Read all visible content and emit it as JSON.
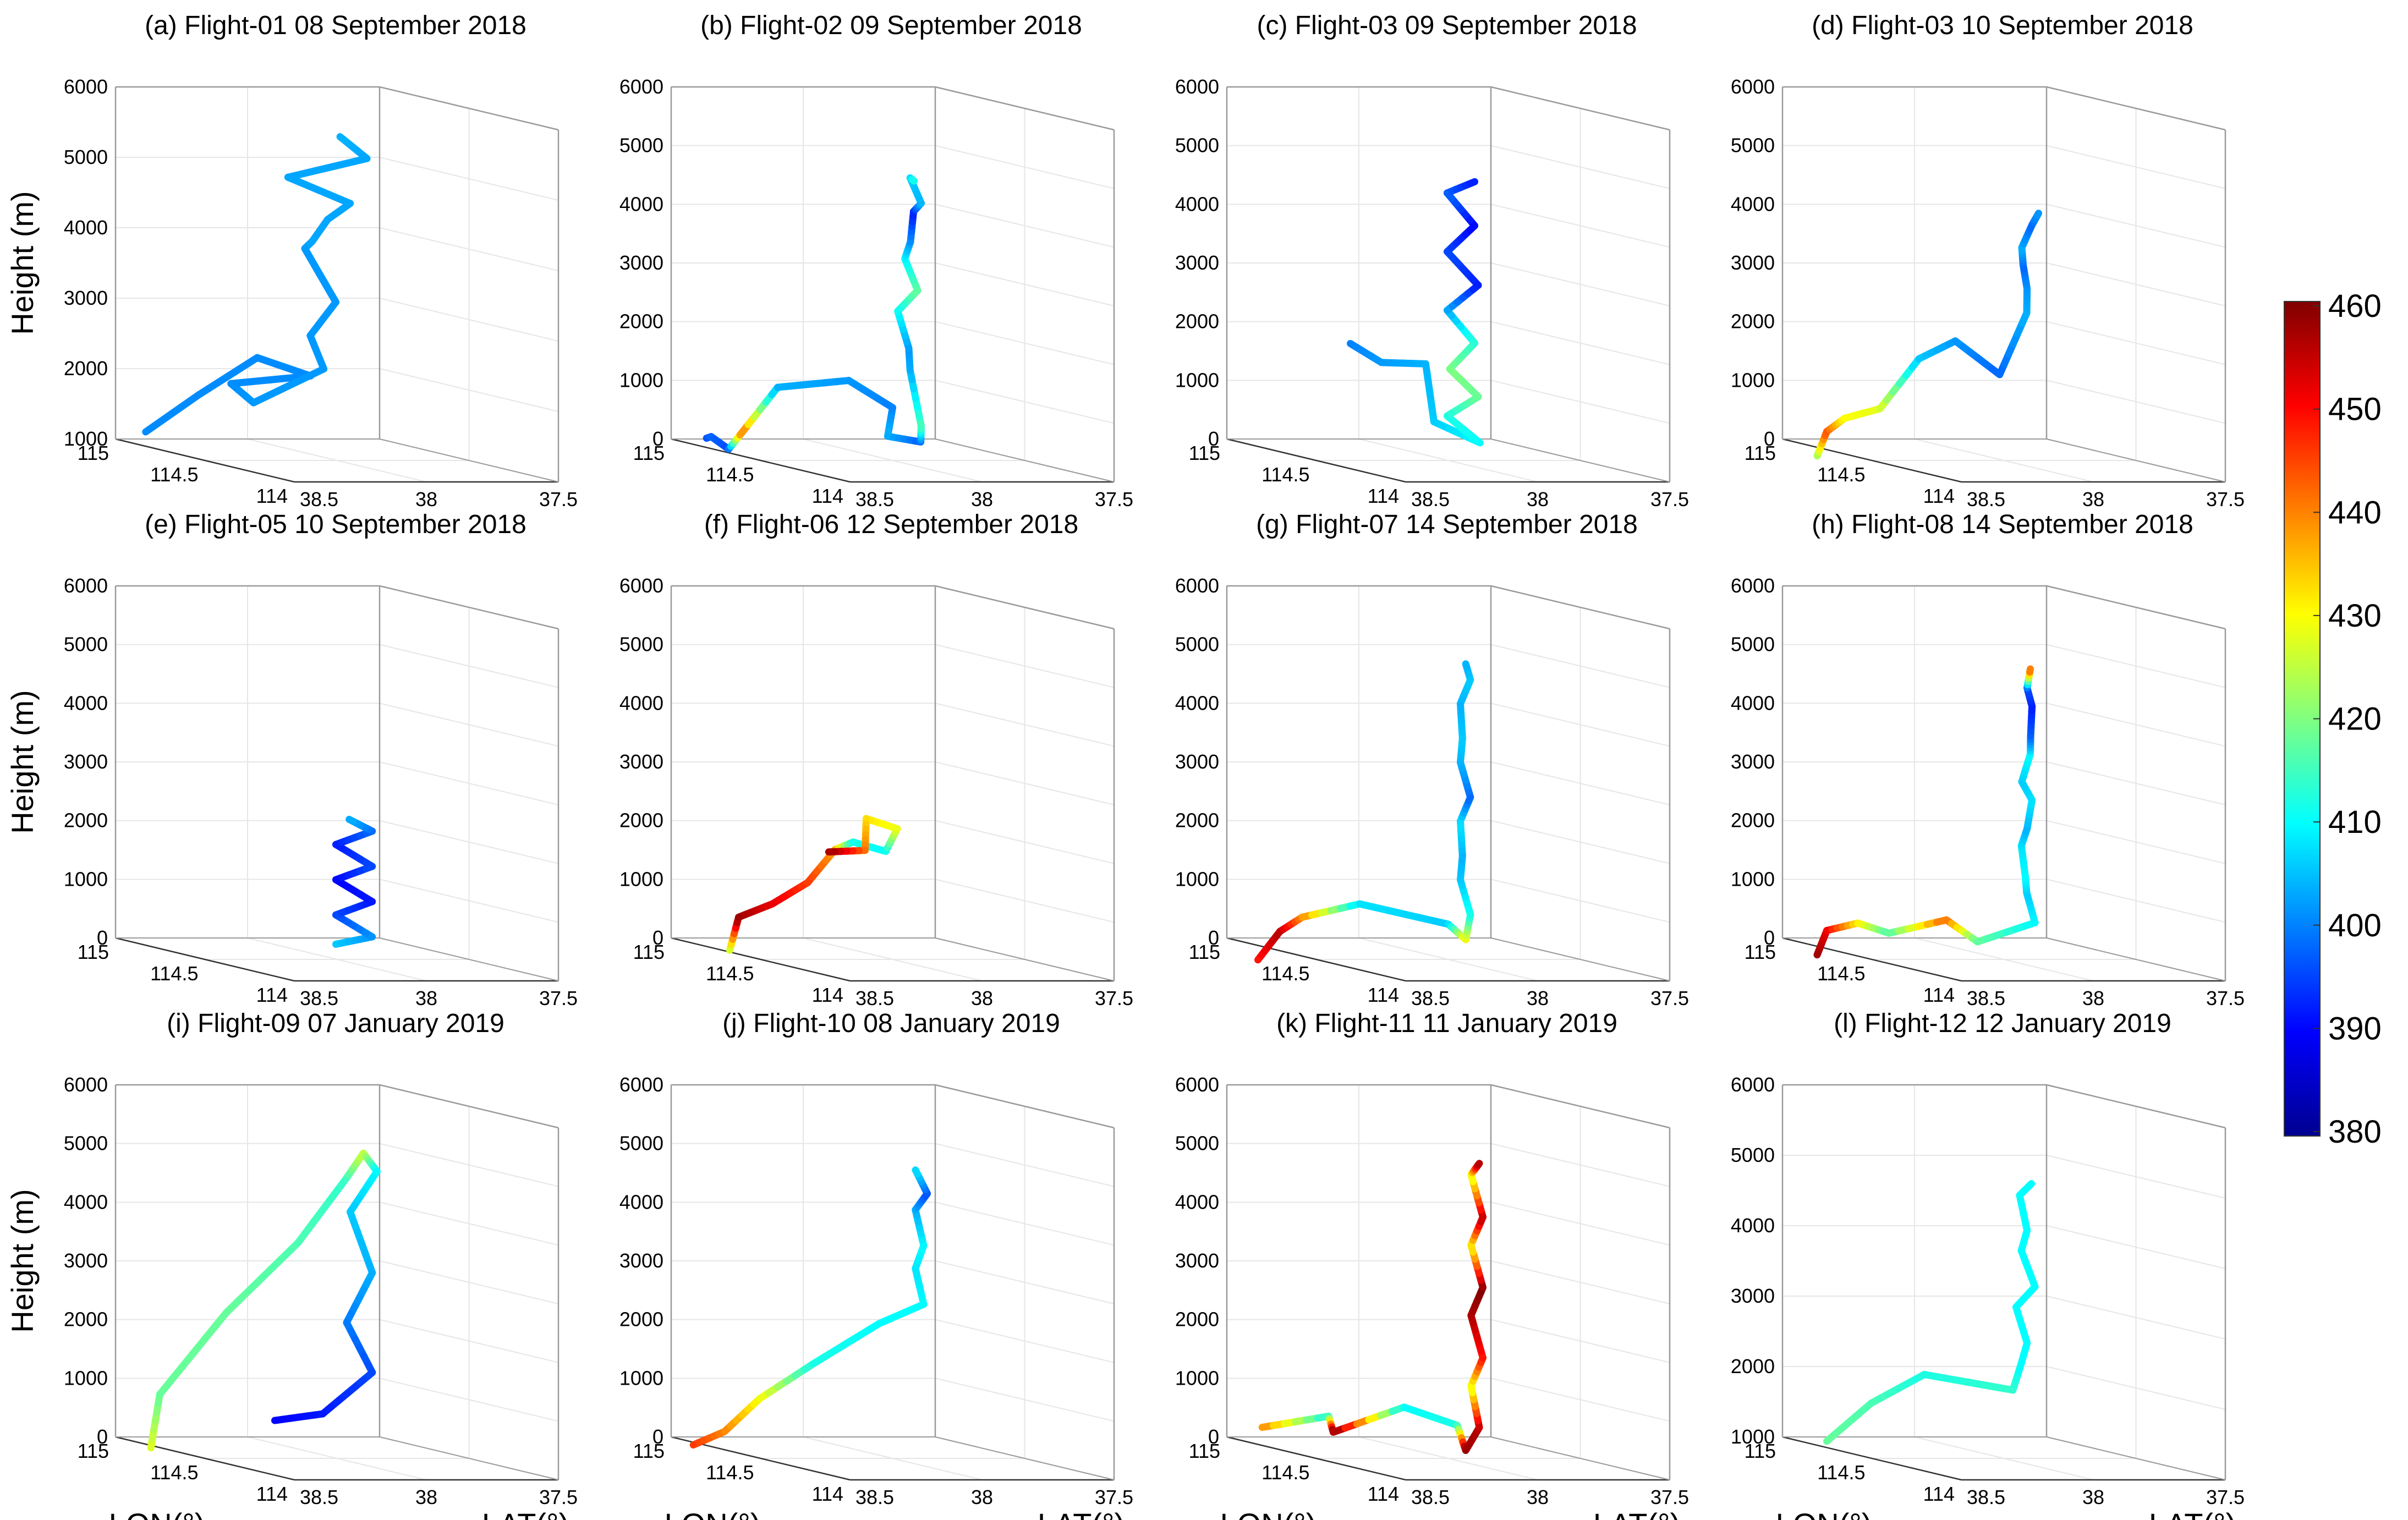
{
  "chart_data": {
    "type": "line3d",
    "colorbar": {
      "min": 380,
      "max": 460,
      "ticks": [
        "460",
        "450",
        "440",
        "430",
        "420",
        "410",
        "400",
        "390",
        "380"
      ],
      "colormap": "jet"
    },
    "axes": {
      "zlabel": "Height (m)",
      "xlabel": "LON(°)",
      "ylabel": "LAT(°)",
      "lon_ticks": [
        "115",
        "114.5",
        "114"
      ],
      "lat_ticks": [
        "38.5",
        "38",
        "37.5"
      ]
    },
    "panels": [
      {
        "title": "(a) Flight-01 08 September 2018",
        "z_ticks": [
          "1000",
          "2000",
          "3000",
          "4000",
          "5000",
          "6000"
        ],
        "zmin": 1000,
        "path": [
          [
            0.08,
            0.06,
            1150,
            401
          ],
          [
            0.2,
            0.18,
            1750,
            401
          ],
          [
            0.32,
            0.32,
            2350,
            401
          ],
          [
            0.5,
            0.4,
            2200,
            401
          ],
          [
            0.35,
            0.2,
            2000,
            401
          ],
          [
            0.55,
            0.15,
            1850,
            402
          ],
          [
            0.5,
            0.45,
            2300,
            402
          ],
          [
            0.38,
            0.48,
            2700,
            402
          ],
          [
            0.42,
            0.55,
            3200,
            402
          ],
          [
            0.32,
            0.5,
            3900,
            402
          ],
          [
            0.48,
            0.42,
            4100,
            403
          ],
          [
            0.3,
            0.6,
            4300,
            403
          ],
          [
            0.5,
            0.55,
            4650,
            403
          ],
          [
            0.3,
            0.45,
            4900,
            403
          ],
          [
            0.52,
            0.6,
            5300,
            403
          ],
          [
            0.34,
            0.62,
            5500,
            404
          ]
        ]
      },
      {
        "title": "(b) Flight-02 09 September 2018",
        "z_ticks": [
          "0",
          "1000",
          "2000",
          "3000",
          "4000",
          "5000",
          "6000"
        ],
        "zmin": 0,
        "path": [
          [
            0.05,
            0.1,
            50,
            396
          ],
          [
            0.15,
            0.05,
            150,
            398
          ],
          [
            0.1,
            0.15,
            -100,
            396
          ],
          [
            0.25,
            0.1,
            300,
            441
          ],
          [
            0.3,
            0.2,
            1100,
            404
          ],
          [
            0.55,
            0.3,
            1400,
            402
          ],
          [
            0.5,
            0.5,
            900,
            400
          ],
          [
            0.62,
            0.4,
            500,
            404
          ],
          [
            0.48,
            0.62,
            300,
            398
          ],
          [
            0.66,
            0.5,
            700,
            416
          ],
          [
            0.45,
            0.6,
            1500,
            404
          ],
          [
            0.62,
            0.48,
            2000,
            402
          ],
          [
            0.44,
            0.56,
            2500,
            410
          ],
          [
            0.64,
            0.5,
            3000,
            418
          ],
          [
            0.45,
            0.58,
            3400,
            410
          ],
          [
            0.6,
            0.5,
            3800,
            402
          ],
          [
            0.44,
            0.62,
            4200,
            392
          ],
          [
            0.66,
            0.5,
            4500,
            404
          ],
          [
            0.48,
            0.58,
            4800,
            406
          ],
          [
            0.62,
            0.5,
            4850,
            412
          ]
        ]
      },
      {
        "title": "(c) Flight-03 09 September 2018",
        "z_ticks": [
          "0",
          "1000",
          "2000",
          "3000",
          "4000",
          "5000",
          "6000"
        ],
        "zmin": 0,
        "path": [
          [
            0.1,
            0.4,
            1700,
            400
          ],
          [
            0.2,
            0.45,
            1450,
            402
          ],
          [
            0.3,
            0.55,
            1500,
            404
          ],
          [
            0.42,
            0.5,
            600,
            406
          ],
          [
            0.5,
            0.62,
            300,
            410
          ],
          [
            0.42,
            0.55,
            700,
            412
          ],
          [
            0.52,
            0.6,
            1100,
            418
          ],
          [
            0.42,
            0.56,
            1500,
            420
          ],
          [
            0.5,
            0.6,
            2000,
            414
          ],
          [
            0.42,
            0.55,
            2500,
            404
          ],
          [
            0.52,
            0.6,
            3000,
            392
          ],
          [
            0.42,
            0.55,
            3500,
            396
          ],
          [
            0.5,
            0.6,
            4000,
            390
          ],
          [
            0.42,
            0.55,
            4500,
            398
          ],
          [
            0.5,
            0.6,
            4750,
            392
          ]
        ]
      },
      {
        "title": "(d) Flight-03 10 September 2018",
        "z_ticks": [
          "0",
          "1000",
          "2000",
          "3000",
          "4000",
          "5000",
          "6000"
        ],
        "zmin": 0,
        "path": [
          [
            0.12,
            0.05,
            -200,
            422
          ],
          [
            0.1,
            0.1,
            200,
            444
          ],
          [
            0.2,
            0.1,
            500,
            430
          ],
          [
            0.25,
            0.2,
            700,
            428
          ],
          [
            0.32,
            0.3,
            1600,
            406
          ],
          [
            0.45,
            0.35,
            2000,
            402
          ],
          [
            0.55,
            0.45,
            1500,
            398
          ],
          [
            0.48,
            0.6,
            2500,
            404
          ],
          [
            0.6,
            0.52,
            3000,
            402
          ],
          [
            0.46,
            0.6,
            3300,
            398
          ],
          [
            0.6,
            0.5,
            3700,
            404
          ],
          [
            0.48,
            0.62,
            4000,
            398
          ],
          [
            0.62,
            0.55,
            4300,
            402
          ]
        ]
      },
      {
        "title": "(e) Flight-05 10 September 2018",
        "z_ticks": [
          "0",
          "1000",
          "2000",
          "3000",
          "4000",
          "5000",
          "6000"
        ],
        "zmin": 0,
        "path": [
          [
            0.42,
            0.55,
            200,
            406
          ],
          [
            0.52,
            0.62,
            400,
            402
          ],
          [
            0.42,
            0.55,
            700,
            396
          ],
          [
            0.52,
            0.62,
            1000,
            392
          ],
          [
            0.42,
            0.55,
            1300,
            390
          ],
          [
            0.52,
            0.62,
            1600,
            396
          ],
          [
            0.42,
            0.55,
            1900,
            392
          ],
          [
            0.52,
            0.62,
            2200,
            398
          ],
          [
            0.45,
            0.58,
            2350,
            404
          ]
        ]
      },
      {
        "title": "(f) Flight-06 12 September 2018",
        "z_ticks": [
          "0",
          "1000",
          "2000",
          "3000",
          "4000",
          "5000",
          "6000"
        ],
        "zmin": 0,
        "path": [
          [
            0.15,
            0.12,
            -100,
            424
          ],
          [
            0.2,
            0.12,
            500,
            458
          ],
          [
            0.3,
            0.18,
            800,
            452
          ],
          [
            0.35,
            0.28,
            1200,
            446
          ],
          [
            0.4,
            0.35,
            1800,
            438
          ],
          [
            0.5,
            0.35,
            2000,
            412
          ],
          [
            0.58,
            0.42,
            1900,
            410
          ],
          [
            0.6,
            0.45,
            2300,
            428
          ],
          [
            0.5,
            0.4,
            2400,
            432
          ],
          [
            0.42,
            0.45,
            1800,
            440
          ],
          [
            0.32,
            0.38,
            1700,
            458
          ]
        ]
      },
      {
        "title": "(g) Flight-07 14 September 2018",
        "z_ticks": [
          "0",
          "1000",
          "2000",
          "3000",
          "4000",
          "5000",
          "6000"
        ],
        "zmin": 0,
        "path": [
          [
            0.1,
            0.05,
            -300,
            448
          ],
          [
            0.12,
            0.12,
            200,
            456
          ],
          [
            0.2,
            0.15,
            500,
            440
          ],
          [
            0.3,
            0.3,
            800,
            408
          ],
          [
            0.5,
            0.5,
            600,
            406
          ],
          [
            0.45,
            0.6,
            300,
            430
          ],
          [
            0.55,
            0.55,
            800,
            412
          ],
          [
            0.42,
            0.6,
            1300,
            406
          ],
          [
            0.55,
            0.52,
            1800,
            404
          ],
          [
            0.42,
            0.6,
            2300,
            408
          ],
          [
            0.55,
            0.55,
            2800,
            398
          ],
          [
            0.42,
            0.6,
            3300,
            404
          ],
          [
            0.55,
            0.52,
            3800,
            406
          ],
          [
            0.42,
            0.6,
            4300,
            404
          ],
          [
            0.55,
            0.55,
            4800,
            406
          ],
          [
            0.45,
            0.6,
            5000,
            404
          ]
        ]
      },
      {
        "title": "(h) Flight-08 14 September 2018",
        "z_ticks": [
          "0",
          "1000",
          "2000",
          "3000",
          "4000",
          "5000",
          "6000"
        ],
        "zmin": 0,
        "path": [
          [
            0.12,
            0.05,
            -200,
            458
          ],
          [
            0.1,
            0.1,
            200,
            452
          ],
          [
            0.2,
            0.15,
            400,
            432
          ],
          [
            0.3,
            0.2,
            300,
            416
          ],
          [
            0.4,
            0.35,
            600,
            442
          ],
          [
            0.5,
            0.4,
            300,
            418
          ],
          [
            0.6,
            0.55,
            700,
            410
          ],
          [
            0.45,
            0.62,
            1100,
            406
          ],
          [
            0.62,
            0.5,
            1500,
            410
          ],
          [
            0.45,
            0.6,
            1900,
            408
          ],
          [
            0.6,
            0.52,
            2300,
            404
          ],
          [
            0.48,
            0.62,
            2700,
            408
          ],
          [
            0.6,
            0.5,
            3100,
            406
          ],
          [
            0.5,
            0.6,
            3500,
            410
          ],
          [
            0.62,
            0.52,
            3900,
            398
          ],
          [
            0.48,
            0.62,
            4300,
            392
          ],
          [
            0.6,
            0.52,
            4700,
            396
          ],
          [
            0.5,
            0.6,
            4950,
            444
          ]
        ]
      },
      {
        "title": "(i) Flight-09 07 January 2019",
        "z_ticks": [
          "0",
          "1000",
          "2000",
          "3000",
          "4000",
          "5000",
          "6000"
        ],
        "zmin": 0,
        "path": [
          [
            0.05,
            0.1,
            -150,
            428
          ],
          [
            0.1,
            0.1,
            800,
            418
          ],
          [
            0.25,
            0.25,
            2300,
            418
          ],
          [
            0.4,
            0.42,
            3600,
            416
          ],
          [
            0.55,
            0.5,
            4800,
            414
          ],
          [
            0.5,
            0.6,
            5200,
            426
          ],
          [
            0.65,
            0.55,
            5000,
            410
          ],
          [
            0.5,
            0.55,
            4200,
            406
          ],
          [
            0.55,
            0.6,
            3200,
            404
          ],
          [
            0.48,
            0.55,
            2300,
            400
          ],
          [
            0.55,
            0.6,
            1500,
            396
          ],
          [
            0.42,
            0.5,
            700,
            392
          ],
          [
            0.3,
            0.4,
            500,
            390
          ]
        ]
      },
      {
        "title": "(j) Flight-10 08 January 2019",
        "z_ticks": [
          "0",
          "1000",
          "2000",
          "3000",
          "4000",
          "5000",
          "6000"
        ],
        "zmin": 0,
        "path": [
          [
            0.05,
            0.05,
            -100,
            446
          ],
          [
            0.15,
            0.1,
            200,
            440
          ],
          [
            0.2,
            0.2,
            800,
            430
          ],
          [
            0.35,
            0.3,
            1500,
            412
          ],
          [
            0.5,
            0.45,
            2300,
            410
          ],
          [
            0.6,
            0.55,
            2700,
            410
          ],
          [
            0.45,
            0.62,
            3200,
            408
          ],
          [
            0.6,
            0.55,
            3700,
            410
          ],
          [
            0.45,
            0.62,
            4200,
            404
          ],
          [
            0.62,
            0.55,
            4600,
            396
          ],
          [
            0.48,
            0.6,
            4900,
            408
          ]
        ]
      },
      {
        "title": "(k) Flight-11 11 January 2019",
        "z_ticks": [
          "0",
          "1000",
          "2000",
          "3000",
          "4000",
          "5000",
          "6000"
        ],
        "zmin": 0,
        "path": [
          [
            0.05,
            0.1,
            200,
            440
          ],
          [
            0.2,
            0.25,
            500,
            412
          ],
          [
            0.3,
            0.2,
            300,
            460
          ],
          [
            0.4,
            0.4,
            800,
            410
          ],
          [
            0.55,
            0.5,
            600,
            412
          ],
          [
            0.45,
            0.6,
            100,
            458
          ],
          [
            0.6,
            0.55,
            600,
            456
          ],
          [
            0.45,
            0.62,
            1200,
            428
          ],
          [
            0.62,
            0.55,
            1800,
            448
          ],
          [
            0.45,
            0.62,
            2400,
            456
          ],
          [
            0.62,
            0.55,
            3000,
            460
          ],
          [
            0.45,
            0.62,
            3600,
            430
          ],
          [
            0.62,
            0.55,
            4200,
            456
          ],
          [
            0.45,
            0.62,
            4800,
            428
          ],
          [
            0.6,
            0.55,
            5100,
            458
          ]
        ]
      },
      {
        "title": "(l) Flight-12 12 January 2019",
        "z_ticks": [
          "1000",
          "2000",
          "3000",
          "4000",
          "5000",
          "6000"
        ],
        "zmin": 1000,
        "path": [
          [
            0.1,
            0.1,
            1000,
            418
          ],
          [
            0.2,
            0.2,
            1600,
            416
          ],
          [
            0.35,
            0.3,
            2100,
            412
          ],
          [
            0.55,
            0.5,
            2000,
            414
          ],
          [
            0.42,
            0.62,
            2300,
            410
          ],
          [
            0.6,
            0.52,
            2700,
            410
          ],
          [
            0.42,
            0.6,
            3100,
            410
          ],
          [
            0.6,
            0.55,
            3500,
            410
          ],
          [
            0.42,
            0.62,
            3900,
            410
          ],
          [
            0.6,
            0.52,
            4300,
            410
          ],
          [
            0.44,
            0.6,
            4700,
            410
          ],
          [
            0.58,
            0.55,
            4950,
            410
          ]
        ]
      }
    ]
  }
}
